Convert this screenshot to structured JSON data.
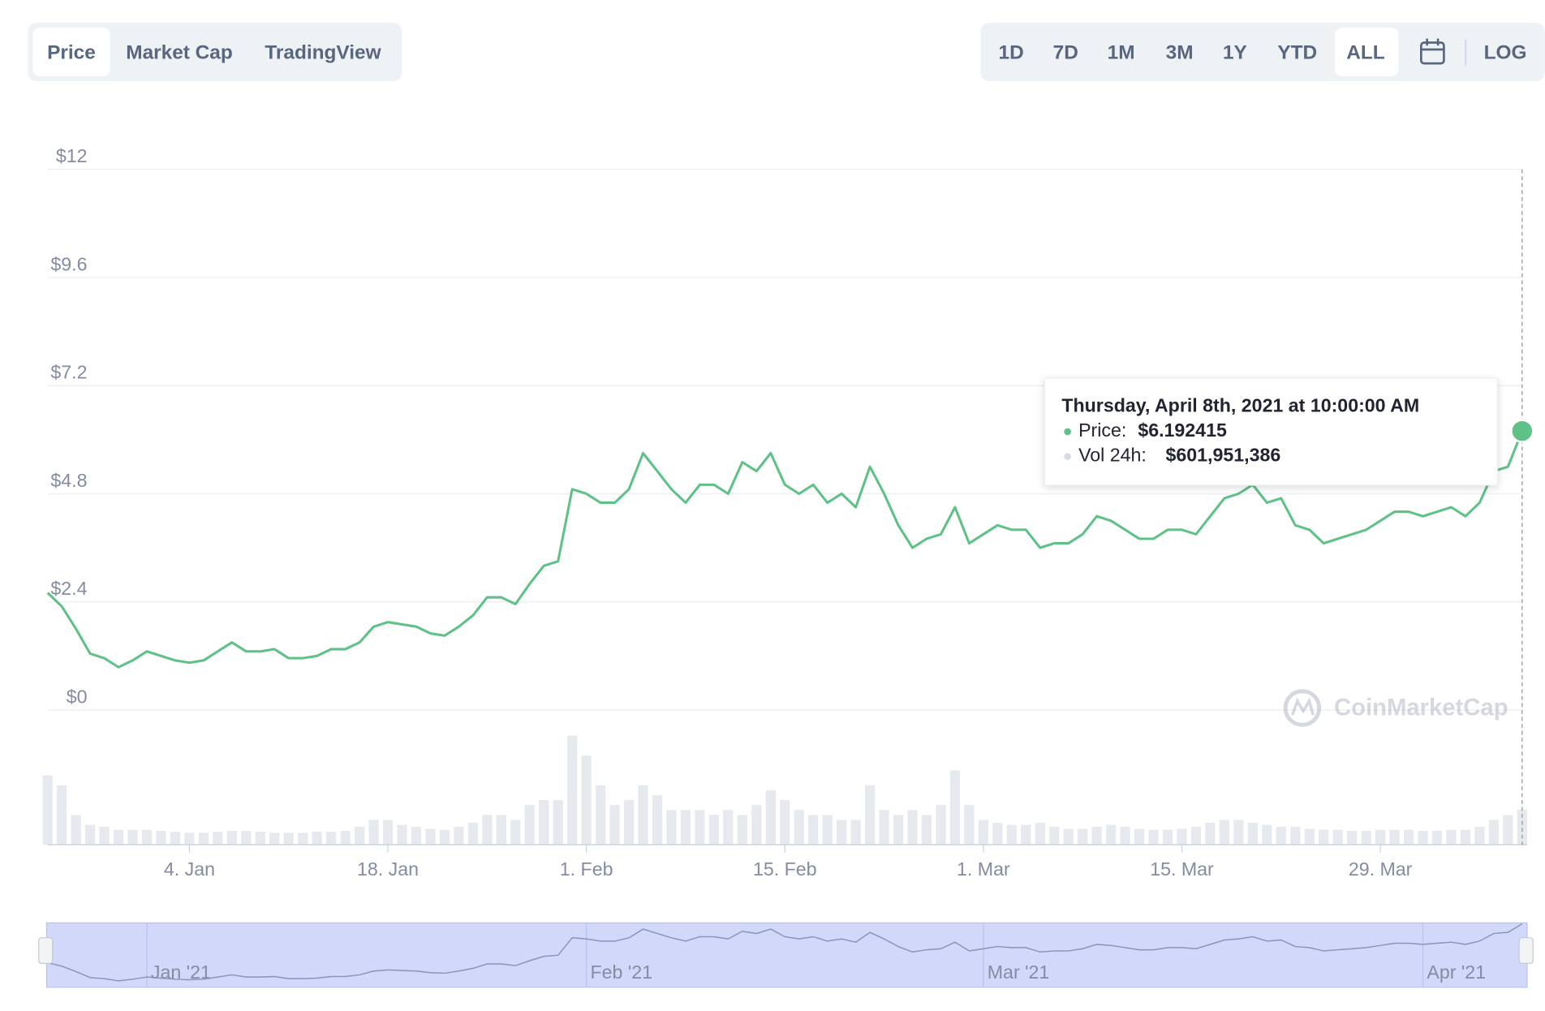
{
  "tabs": [
    "Price",
    "Market Cap",
    "TradingView"
  ],
  "ranges": [
    "1D",
    "7D",
    "1M",
    "3M",
    "1Y",
    "YTD",
    "ALL"
  ],
  "log_button": "LOG",
  "watermark": "CoinMarketCap",
  "tooltip": {
    "title": "Thursday, April 8th, 2021 at 10:00:00 AM",
    "price_label": "Price:",
    "price": "$6.192415",
    "volume_label": "Vol 24h:",
    "volume": "$601,951,386"
  },
  "chart_data": {
    "type": "line",
    "xlim": [
      "2020-12-25",
      "2021-04-08"
    ],
    "ylim": [
      0,
      12
    ],
    "yticks": [
      {
        "value": 0,
        "label": "$0"
      },
      {
        "value": 2.4,
        "label": "$2.4"
      },
      {
        "value": 4.8,
        "label": "$4.8"
      },
      {
        "value": 7.2,
        "label": "$7.2"
      },
      {
        "value": 9.6,
        "label": "$9.6"
      },
      {
        "value": 12,
        "label": "$12"
      }
    ],
    "xticks": [
      {
        "value": "2021-01-04",
        "label": "4. Jan"
      },
      {
        "value": "2021-01-18",
        "label": "18. Jan"
      },
      {
        "value": "2021-02-01",
        "label": "1. Feb"
      },
      {
        "value": "2021-02-15",
        "label": "15. Feb"
      },
      {
        "value": "2021-03-01",
        "label": "1. Mar"
      },
      {
        "value": "2021-03-15",
        "label": "15. Mar"
      },
      {
        "value": "2021-03-29",
        "label": "29. Mar"
      }
    ],
    "navigator_ticks": [
      {
        "value": "2021-01-01",
        "label": "Jan '21"
      },
      {
        "value": "2021-02-01",
        "label": "Feb '21"
      },
      {
        "value": "2021-03-01",
        "label": "Mar '21"
      },
      {
        "value": "2021-04-01",
        "label": "Apr '21"
      }
    ],
    "grid": true,
    "x": [
      "2020-12-25",
      "2020-12-26",
      "2020-12-27",
      "2020-12-28",
      "2020-12-29",
      "2020-12-30",
      "2020-12-31",
      "2021-01-01",
      "2021-01-02",
      "2021-01-03",
      "2021-01-04",
      "2021-01-05",
      "2021-01-06",
      "2021-01-07",
      "2021-01-08",
      "2021-01-09",
      "2021-01-10",
      "2021-01-11",
      "2021-01-12",
      "2021-01-13",
      "2021-01-14",
      "2021-01-15",
      "2021-01-16",
      "2021-01-17",
      "2021-01-18",
      "2021-01-19",
      "2021-01-20",
      "2021-01-21",
      "2021-01-22",
      "2021-01-23",
      "2021-01-24",
      "2021-01-25",
      "2021-01-26",
      "2021-01-27",
      "2021-01-28",
      "2021-01-29",
      "2021-01-30",
      "2021-01-31",
      "2021-02-01",
      "2021-02-02",
      "2021-02-03",
      "2021-02-04",
      "2021-02-05",
      "2021-02-06",
      "2021-02-07",
      "2021-02-08",
      "2021-02-09",
      "2021-02-10",
      "2021-02-11",
      "2021-02-12",
      "2021-02-13",
      "2021-02-14",
      "2021-02-15",
      "2021-02-16",
      "2021-02-17",
      "2021-02-18",
      "2021-02-19",
      "2021-02-20",
      "2021-02-21",
      "2021-02-22",
      "2021-02-23",
      "2021-02-24",
      "2021-02-25",
      "2021-02-26",
      "2021-02-27",
      "2021-02-28",
      "2021-03-01",
      "2021-03-02",
      "2021-03-03",
      "2021-03-04",
      "2021-03-05",
      "2021-03-06",
      "2021-03-07",
      "2021-03-08",
      "2021-03-09",
      "2021-03-10",
      "2021-03-11",
      "2021-03-12",
      "2021-03-13",
      "2021-03-14",
      "2021-03-15",
      "2021-03-16",
      "2021-03-17",
      "2021-03-18",
      "2021-03-19",
      "2021-03-20",
      "2021-03-21",
      "2021-03-22",
      "2021-03-23",
      "2021-03-24",
      "2021-03-25",
      "2021-03-26",
      "2021-03-27",
      "2021-03-28",
      "2021-03-29",
      "2021-03-30",
      "2021-03-31",
      "2021-04-01",
      "2021-04-02",
      "2021-04-03",
      "2021-04-04",
      "2021-04-05",
      "2021-04-06",
      "2021-04-07",
      "2021-04-08"
    ],
    "series": [
      {
        "name": "Price",
        "color": "#5ec186",
        "values": [
          2.6,
          2.3,
          1.8,
          1.25,
          1.15,
          0.95,
          1.1,
          1.3,
          1.2,
          1.1,
          1.05,
          1.1,
          1.3,
          1.5,
          1.3,
          1.3,
          1.35,
          1.15,
          1.15,
          1.2,
          1.35,
          1.35,
          1.5,
          1.85,
          1.95,
          1.9,
          1.85,
          1.7,
          1.65,
          1.85,
          2.1,
          2.5,
          2.5,
          2.35,
          2.8,
          3.2,
          3.3,
          4.9,
          4.8,
          4.6,
          4.6,
          4.9,
          5.7,
          5.3,
          4.9,
          4.6,
          5.0,
          5.0,
          4.8,
          5.5,
          5.3,
          5.7,
          5.0,
          4.8,
          5.0,
          4.6,
          4.8,
          4.5,
          5.4,
          4.8,
          4.1,
          3.6,
          3.8,
          3.9,
          4.5,
          3.7,
          3.9,
          4.1,
          4.0,
          4.0,
          3.6,
          3.7,
          3.7,
          3.9,
          4.3,
          4.2,
          4.0,
          3.8,
          3.8,
          4.0,
          4.0,
          3.9,
          4.3,
          4.7,
          4.8,
          5.0,
          4.6,
          4.7,
          4.1,
          4.0,
          3.7,
          3.8,
          3.9,
          4.0,
          4.2,
          4.4,
          4.4,
          4.3,
          4.4,
          4.5,
          4.3,
          4.6,
          5.3,
          5.4,
          6.192415
        ]
      },
      {
        "name": "Vol 24h",
        "color": "#e6e9ed",
        "values": [
          1190000000,
          1020000000,
          510000000,
          340000000,
          306000000,
          255000000,
          255000000,
          255000000,
          238000000,
          221000000,
          204000000,
          204000000,
          221000000,
          238000000,
          238000000,
          221000000,
          204000000,
          204000000,
          204000000,
          221000000,
          221000000,
          238000000,
          306000000,
          425000000,
          425000000,
          340000000,
          306000000,
          272000000,
          255000000,
          306000000,
          374000000,
          510000000,
          510000000,
          425000000,
          680000000,
          765000000,
          765000000,
          1870000000,
          1530000000,
          1020000000,
          680000000,
          765000000,
          1020000000,
          850000000,
          595000000,
          595000000,
          595000000,
          510000000,
          595000000,
          510000000,
          680000000,
          935000000,
          765000000,
          595000000,
          510000000,
          510000000,
          425000000,
          425000000,
          1020000000,
          595000000,
          510000000,
          595000000,
          510000000,
          680000000,
          1275000000,
          680000000,
          425000000,
          374000000,
          340000000,
          340000000,
          374000000,
          306000000,
          272000000,
          272000000,
          306000000,
          340000000,
          306000000,
          272000000,
          255000000,
          255000000,
          272000000,
          306000000,
          374000000,
          425000000,
          425000000,
          374000000,
          340000000,
          306000000,
          306000000,
          272000000,
          255000000,
          255000000,
          238000000,
          238000000,
          255000000,
          255000000,
          255000000,
          238000000,
          238000000,
          255000000,
          255000000,
          306000000,
          425000000,
          510000000,
          601951386
        ]
      }
    ]
  }
}
